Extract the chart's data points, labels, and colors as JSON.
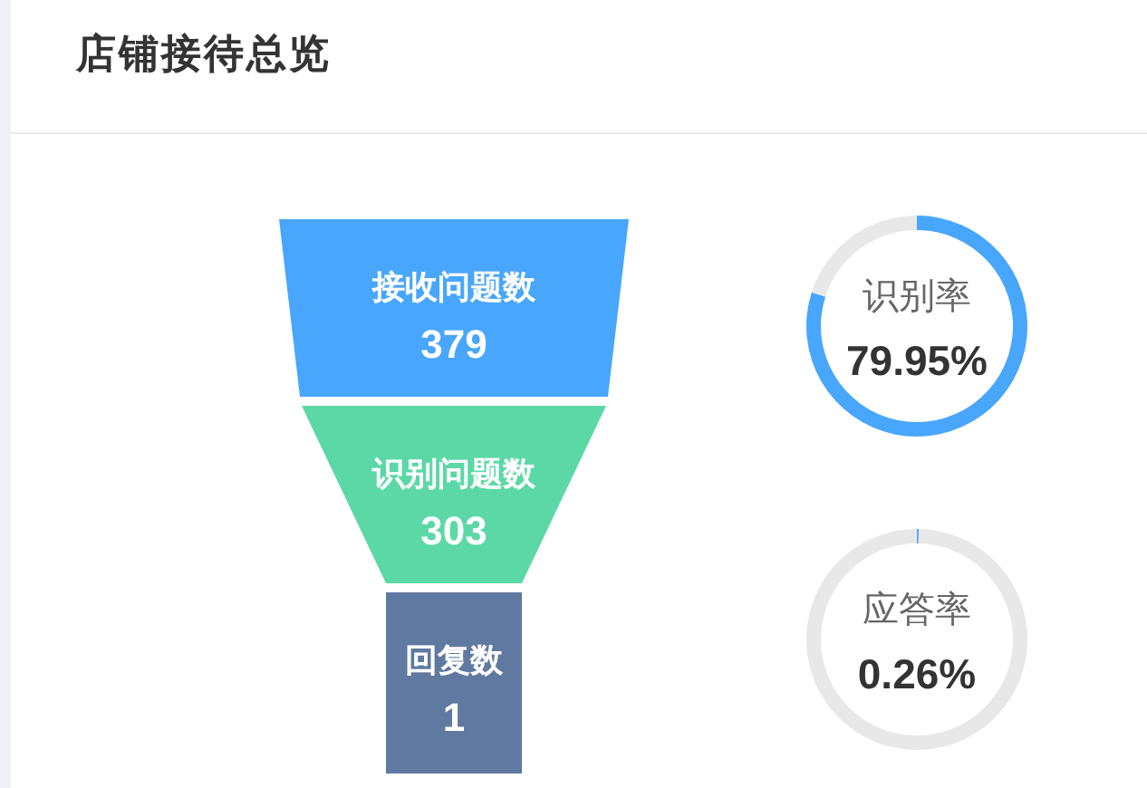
{
  "chart_data": [
    {
      "type": "other",
      "title": "店铺接待总览",
      "categories": [
        "接收问题数",
        "识别问题数",
        "回复数"
      ],
      "values": [
        379,
        303,
        1
      ],
      "colors": [
        "#48a6fd",
        "#5bd8a6",
        "#5f79a0"
      ],
      "data_labels": true
    },
    {
      "type": "donut",
      "title": "识别率",
      "categories": [
        null,
        null
      ],
      "values": [
        79.95,
        20.05
      ],
      "colors": [
        "#48a6fd",
        "#e8e8e8"
      ],
      "annotations": [
        "79.95%"
      ]
    },
    {
      "type": "donut",
      "title": "应答率",
      "categories": [
        null,
        null
      ],
      "values": [
        0.26,
        99.74
      ],
      "colors": [
        "#48a6fd",
        "#e8e8e8"
      ],
      "annotations": [
        "0.26%"
      ]
    }
  ]
}
